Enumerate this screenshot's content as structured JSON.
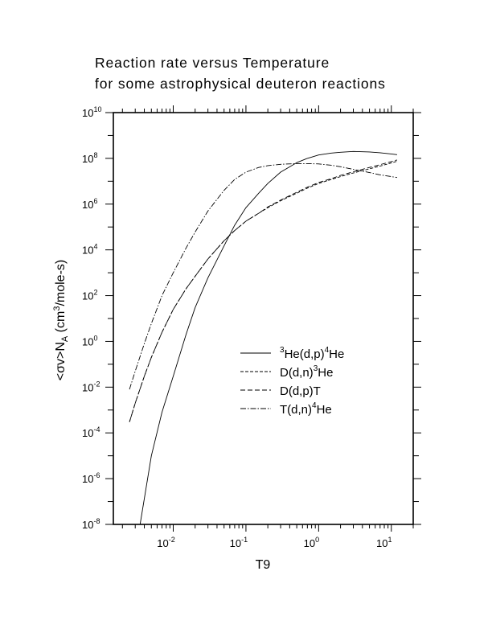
{
  "page": {
    "title_line1": "Reaction rate versus Temperature",
    "title_line2": "for some astrophysical deuteron reactions"
  },
  "chart_data": {
    "type": "line",
    "title": "Reaction rate versus Temperature for some astrophysical deuteron reactions",
    "xlabel": "T9",
    "ylabel": "<σv>N_A (cm^3/mole-s)",
    "xscale": "log",
    "yscale": "log",
    "xlim": [
      0.0015,
      20
    ],
    "ylim": [
      1e-08,
      10000000000.0
    ],
    "grid": false,
    "legend_position": "center-right",
    "x_ticks": [
      {
        "value": 0.01,
        "base": "10",
        "exp": "-2"
      },
      {
        "value": 0.1,
        "base": "10",
        "exp": "-1"
      },
      {
        "value": 1,
        "base": "10",
        "exp": "0"
      },
      {
        "value": 10,
        "base": "10",
        "exp": "1"
      }
    ],
    "y_ticks": [
      {
        "value": 1e-08,
        "base": "10",
        "exp": "-8"
      },
      {
        "value": 1e-06,
        "base": "10",
        "exp": "-6"
      },
      {
        "value": 0.0001,
        "base": "10",
        "exp": "-4"
      },
      {
        "value": 0.01,
        "base": "10",
        "exp": "-2"
      },
      {
        "value": 1,
        "base": "10",
        "exp": "0"
      },
      {
        "value": 100.0,
        "base": "10",
        "exp": "2"
      },
      {
        "value": 10000.0,
        "base": "10",
        "exp": "4"
      },
      {
        "value": 1000000.0,
        "base": "10",
        "exp": "6"
      },
      {
        "value": 100000000.0,
        "base": "10",
        "exp": "8"
      },
      {
        "value": 10000000000.0,
        "base": "10",
        "exp": "10"
      }
    ],
    "series": [
      {
        "name": "3He(d,p)4He",
        "legend_parts": [
          [
            "3",
            "sup"
          ],
          [
            "He(d,p)",
            ""
          ],
          [
            "4",
            "sup"
          ],
          [
            "He",
            ""
          ]
        ],
        "dash": "",
        "x": [
          0.0035,
          0.005,
          0.007,
          0.01,
          0.015,
          0.02,
          0.03,
          0.05,
          0.07,
          0.1,
          0.15,
          0.2,
          0.3,
          0.5,
          0.7,
          1,
          1.5,
          2,
          3,
          5,
          7,
          10,
          12
        ],
        "y": [
          1e-08,
          1e-05,
          0.0008,
          0.03,
          2.0,
          30,
          600,
          15000.0,
          120000.0,
          700000.0,
          3000000.0,
          8000000.0,
          25000000.0,
          65000000.0,
          100000000.0,
          140000000.0,
          170000000.0,
          185000000.0,
          200000000.0,
          190000000.0,
          175000000.0,
          155000000.0,
          145000000.0
        ]
      },
      {
        "name": "D(d,n)3He",
        "legend_parts": [
          [
            "D(d,n)",
            ""
          ],
          [
            "3",
            "sup"
          ],
          [
            "He",
            ""
          ]
        ],
        "dash": "4,2",
        "x": [
          0.0025,
          0.003,
          0.004,
          0.005,
          0.007,
          0.01,
          0.015,
          0.02,
          0.03,
          0.05,
          0.07,
          0.1,
          0.15,
          0.2,
          0.3,
          0.5,
          0.7,
          1,
          1.5,
          2,
          3,
          5,
          7,
          10,
          12
        ],
        "y": [
          0.0003,
          0.002,
          0.03,
          0.2,
          2.5,
          25,
          200,
          700,
          4000,
          25000.0,
          70000.0,
          180000.0,
          400000.0,
          700000.0,
          1400000.0,
          3000000.0,
          5000000.0,
          8000000.0,
          12000000.0,
          16000000.0,
          23000000.0,
          35000000.0,
          46000000.0,
          63000000.0,
          75000000.0
        ]
      },
      {
        "name": "D(d,p)T",
        "legend_parts": [
          [
            "D(d,p)T",
            ""
          ]
        ],
        "dash": "6,3",
        "x": [
          0.0025,
          0.003,
          0.004,
          0.005,
          0.007,
          0.01,
          0.015,
          0.02,
          0.03,
          0.05,
          0.07,
          0.1,
          0.15,
          0.2,
          0.3,
          0.5,
          0.7,
          1,
          1.5,
          2,
          3,
          5,
          7,
          10,
          12
        ],
        "y": [
          0.0003,
          0.002,
          0.03,
          0.2,
          2.5,
          25,
          200,
          700,
          4000,
          25000.0,
          70000.0,
          180000.0,
          400000.0,
          750000.0,
          1500000.0,
          3300000.0,
          5500000.0,
          8800000.0,
          13000000.0,
          18000000.0,
          26000000.0,
          40000000.0,
          53000000.0,
          72000000.0,
          85000000.0
        ]
      },
      {
        "name": "T(d,n)4He",
        "legend_parts": [
          [
            "T(d,n)",
            ""
          ],
          [
            "4",
            "sup"
          ],
          [
            "He",
            ""
          ]
        ],
        "dash": "7,2,1.5,2",
        "x": [
          0.0025,
          0.003,
          0.004,
          0.005,
          0.007,
          0.01,
          0.015,
          0.02,
          0.03,
          0.05,
          0.07,
          0.1,
          0.15,
          0.2,
          0.3,
          0.5,
          0.7,
          1,
          1.5,
          2,
          3,
          5,
          7,
          10,
          12
        ],
        "y": [
          0.008,
          0.05,
          0.8,
          6,
          100,
          1000,
          12000.0,
          60000.0,
          500000.0,
          4000000.0,
          12000000.0,
          25000000.0,
          40000000.0,
          48000000.0,
          55000000.0,
          59000000.0,
          59000000.0,
          57000000.0,
          50000000.0,
          43000000.0,
          33000000.0,
          24000000.0,
          19000000.0,
          16000000.0,
          14500000.0
        ]
      }
    ]
  }
}
